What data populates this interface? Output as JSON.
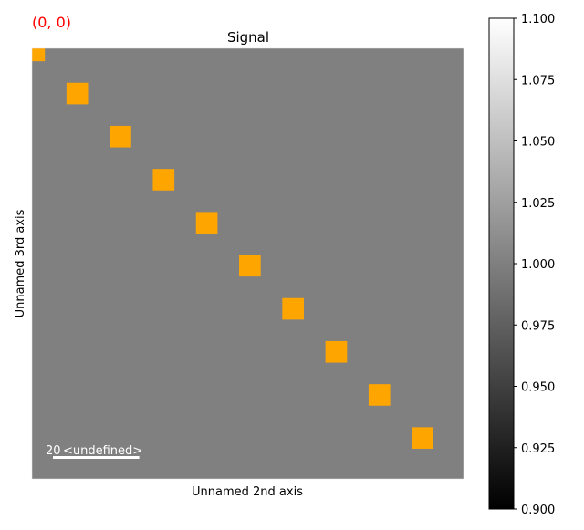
{
  "coordinate_label": "(0, 0)",
  "coordinate_color": "#ff0000",
  "chart_data": {
    "type": "heatmap",
    "title": "Signal",
    "xlabel": "Unnamed 2nd axis",
    "ylabel": "Unnamed 3rd axis",
    "image_shape": [
      100,
      100
    ],
    "background_value": 1.0,
    "background_color": "#808080",
    "marker_color": "#ffa500",
    "marker_size": 5,
    "markers": [
      {
        "x": 0,
        "y": 0
      },
      {
        "x": 10,
        "y": 10
      },
      {
        "x": 20,
        "y": 20
      },
      {
        "x": 30,
        "y": 30
      },
      {
        "x": 40,
        "y": 40
      },
      {
        "x": 50,
        "y": 50
      },
      {
        "x": 60,
        "y": 60
      },
      {
        "x": 70,
        "y": 70
      },
      {
        "x": 80,
        "y": 80
      },
      {
        "x": 90,
        "y": 90
      }
    ],
    "scalebar": {
      "value": "20",
      "units": "<undefined>",
      "length": 20
    },
    "colorbar": {
      "range": [
        0.9,
        1.1
      ],
      "colormap": "gray",
      "ticks": [
        "0.900",
        "0.925",
        "0.950",
        "0.975",
        "1.000",
        "1.025",
        "1.050",
        "1.075",
        "1.100"
      ]
    }
  }
}
